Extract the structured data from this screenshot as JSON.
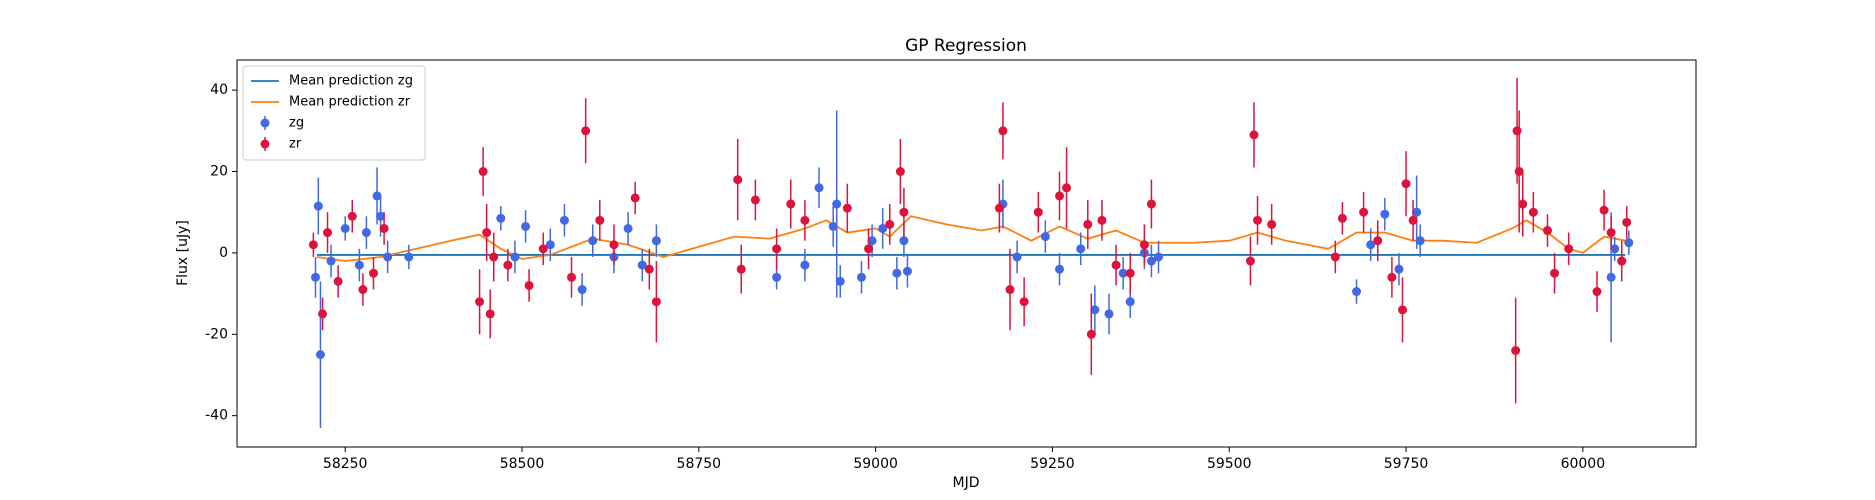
{
  "chart_data": {
    "type": "errorbar",
    "title": "GP Regression",
    "x_label": "MJD",
    "y_label": "Flux [uJy]",
    "xlim": [
      58097,
      60160
    ],
    "ylim": [
      -47.7,
      47.4
    ],
    "xticks": [
      58250,
      58500,
      58750,
      59000,
      59250,
      59500,
      59750,
      60000
    ],
    "yticks": [
      -40,
      -20,
      0,
      20,
      40
    ],
    "legend": "upper left",
    "series": [
      {
        "name": "Mean prediction zg",
        "mode": "line",
        "color": "#1f77b4",
        "x": [
          58210,
          60060
        ],
        "values": [
          -0.5,
          -0.5
        ]
      },
      {
        "name": "Mean prediction zr",
        "mode": "line",
        "color": "#ff7f0e",
        "x": [
          58210,
          58250,
          58300,
          58350,
          58400,
          58440,
          58470,
          58500,
          58540,
          58600,
          58650,
          58700,
          58750,
          58800,
          58850,
          58900,
          58930,
          58960,
          59000,
          59020,
          59050,
          59100,
          59150,
          59180,
          59220,
          59260,
          59300,
          59340,
          59380,
          59450,
          59500,
          59540,
          59580,
          59640,
          59680,
          59720,
          59760,
          59800,
          59850,
          59900,
          59920,
          59950,
          59980,
          60000,
          60030,
          60060
        ],
        "values": [
          -1,
          -2,
          -1,
          1,
          3,
          4.5,
          1,
          -1.5,
          -0.5,
          3.5,
          2,
          -1,
          1.5,
          4,
          3.5,
          6,
          8,
          5,
          6,
          4,
          9,
          7,
          5.5,
          6.5,
          3,
          6.5,
          3.5,
          5.5,
          2.5,
          2.5,
          3,
          5,
          3,
          1,
          5,
          5,
          3,
          3,
          2.5,
          6,
          8,
          5,
          1,
          0,
          4,
          3
        ]
      },
      {
        "name": "zg",
        "mode": "errorbar",
        "color": "#4169e1",
        "x": [
          58208,
          58212,
          58215,
          58230,
          58250,
          58270,
          58280,
          58295,
          58300,
          58310,
          58340,
          58470,
          58490,
          58505,
          58540,
          58560,
          58585,
          58600,
          58630,
          58650,
          58670,
          58690,
          58860,
          58900,
          58920,
          58940,
          58945,
          58950,
          58980,
          58995,
          59010,
          59030,
          59040,
          59045,
          59180,
          59200,
          59240,
          59260,
          59290,
          59310,
          59330,
          59350,
          59360,
          59380,
          59390,
          59400,
          59680,
          59700,
          59720,
          59740,
          59765,
          59770,
          60040,
          60045,
          60055,
          60065
        ],
        "values": [
          -6,
          11.5,
          -25,
          -2,
          6,
          -3,
          5,
          14,
          9,
          -1,
          -1,
          8.5,
          -1,
          6.5,
          2,
          8,
          -9,
          3,
          -1,
          6,
          -3,
          3,
          -6,
          -3,
          16,
          6.5,
          12,
          -7,
          -6,
          3,
          6,
          -5,
          3,
          -4.5,
          12,
          -1,
          4,
          -4,
          1,
          -14,
          -15,
          -5,
          -12,
          0,
          -2,
          -1,
          -9.5,
          2,
          9.5,
          -4,
          10,
          3,
          -6,
          1,
          -2,
          2.5
        ],
        "errors": [
          5,
          7,
          18,
          4,
          3,
          4,
          4,
          7,
          5,
          4,
          3,
          3,
          4,
          4,
          4,
          4,
          4,
          4,
          4,
          4,
          4,
          4,
          3,
          4,
          5,
          5,
          23,
          4,
          4,
          4,
          5,
          4,
          4,
          4,
          6,
          4,
          4,
          4,
          4,
          6,
          5,
          4,
          4,
          4,
          4,
          4,
          3,
          4,
          4,
          4,
          9,
          4,
          16,
          3,
          4,
          3
        ]
      },
      {
        "name": "zr",
        "mode": "errorbar",
        "color": "#dc143c",
        "x": [
          58205,
          58218,
          58225,
          58240,
          58260,
          58275,
          58290,
          58305,
          58440,
          58445,
          58450,
          58455,
          58460,
          58480,
          58510,
          58530,
          58570,
          58590,
          58610,
          58630,
          58660,
          58680,
          58690,
          58805,
          58810,
          58830,
          58860,
          58880,
          58900,
          58960,
          58990,
          59020,
          59035,
          59040,
          59175,
          59180,
          59190,
          59210,
          59230,
          59260,
          59270,
          59300,
          59305,
          59320,
          59340,
          59360,
          59380,
          59390,
          59530,
          59535,
          59540,
          59560,
          59650,
          59660,
          59690,
          59710,
          59730,
          59745,
          59750,
          59760,
          59905,
          59907,
          59910,
          59915,
          59930,
          59950,
          59980,
          59960,
          60020,
          60030,
          60040,
          60055,
          60062
        ],
        "values": [
          2,
          -15,
          5,
          -7,
          9,
          -9,
          -5,
          6,
          -12,
          20,
          5,
          -15,
          -1,
          -3,
          -8,
          1,
          -6,
          30,
          8,
          2,
          13.5,
          -4,
          -12,
          18,
          -4,
          13,
          1,
          12,
          8,
          11,
          1,
          7,
          20,
          10,
          11,
          30,
          -9,
          -12,
          10,
          14,
          16,
          7,
          -20,
          8,
          -3,
          -5,
          2,
          12,
          -2,
          29,
          8,
          7,
          -1,
          8.5,
          10,
          3,
          -6,
          -14,
          17,
          8,
          -24,
          30,
          20,
          12,
          10,
          5.5,
          1,
          -5,
          -9.5,
          10.5,
          5,
          -2,
          7.5
        ],
        "errors": [
          3,
          4,
          5,
          4,
          4,
          4,
          4,
          4,
          8,
          6,
          7,
          6,
          6,
          4,
          4,
          4,
          5,
          8,
          5,
          5,
          4,
          5,
          10,
          10,
          6,
          5,
          5,
          6,
          5,
          6,
          5,
          5,
          8,
          6,
          6,
          7,
          10,
          6,
          5,
          6,
          10,
          6,
          10,
          5,
          5,
          5,
          5,
          6,
          6,
          8,
          6,
          5,
          4,
          4,
          5,
          5,
          5,
          8,
          8,
          5,
          13,
          13,
          15,
          8,
          5,
          4,
          4,
          5,
          5,
          5,
          4,
          5,
          4
        ]
      }
    ]
  }
}
